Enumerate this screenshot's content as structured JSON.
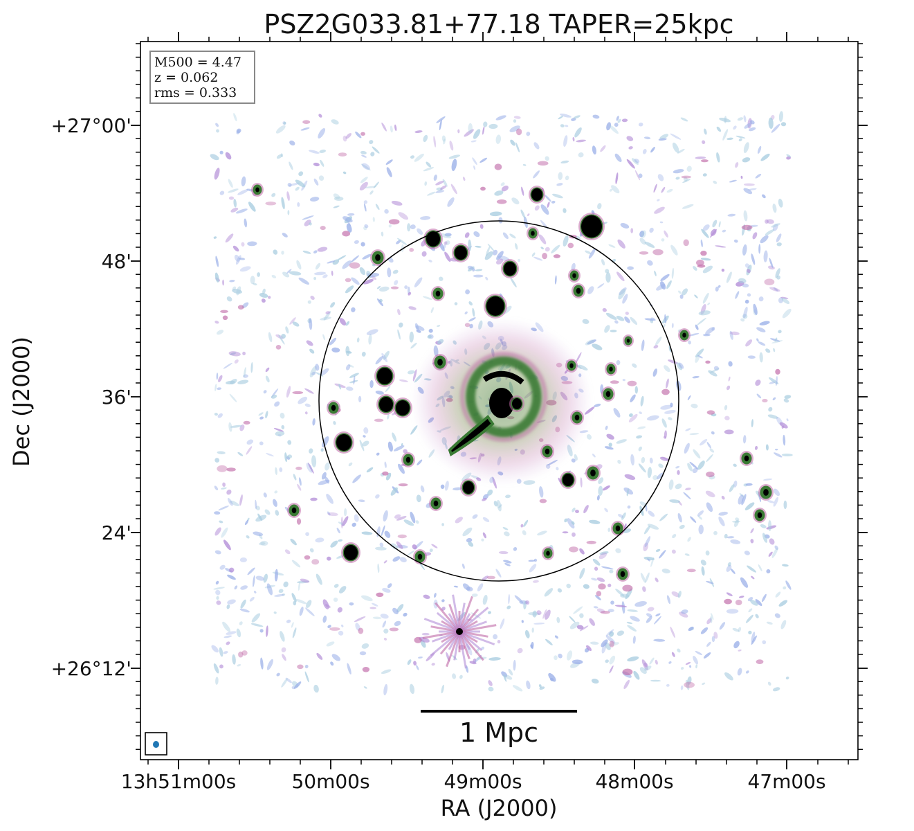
{
  "title": "PSZ2G033.81+77.18 TAPER=25kpc",
  "info_box": {
    "lines": [
      "M500 = 4.47",
      "z = 0.062",
      "rms = 0.333"
    ]
  },
  "axes": {
    "xlabel": "RA (J2000)",
    "ylabel": "Dec (J2000)",
    "x_ticks": [
      "13h51m00s",
      "50m00s",
      "49m00s",
      "48m00s",
      "47m00s"
    ],
    "y_ticks": [
      "+27°00'",
      "48'",
      "36'",
      "24'",
      "+26°12'"
    ]
  },
  "scalebar": {
    "label": "1 Mpc"
  },
  "colors": {
    "axis": "#000000",
    "circle": "#000000",
    "beam": "#1f77b4",
    "noise_light": "#a9cde0",
    "noise_blue": "#9bb0e8",
    "noise_purple": "#b48fd8",
    "emission_pink": "#c06aa8",
    "emission_green": "#3a7a34",
    "source_core": "#000000"
  },
  "image": {
    "description_icon": "radio-continuum-map"
  }
}
